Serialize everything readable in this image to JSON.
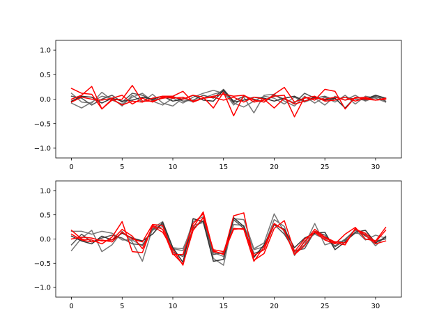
{
  "chart_data": [
    {
      "type": "line",
      "title": "",
      "xlabel": "",
      "ylabel": "",
      "xlim": [
        -1.55,
        32.55
      ],
      "ylim": [
        -1.2,
        1.2
      ],
      "xticks": [
        0,
        5,
        10,
        15,
        20,
        25,
        30
      ],
      "yticks": [
        -1.0,
        -0.5,
        0.0,
        0.5,
        1.0
      ],
      "xtick_labels": [
        "0",
        "5",
        "10",
        "15",
        "20",
        "25",
        "30"
      ],
      "ytick_labels": [
        "−1.0",
        "−0.5",
        "0.0",
        "0.5",
        "1.0"
      ],
      "grid": false,
      "x": [
        0,
        1,
        2,
        3,
        4,
        5,
        6,
        7,
        8,
        9,
        10,
        11,
        12,
        13,
        14,
        15,
        16,
        17,
        18,
        19,
        20,
        21,
        22,
        23,
        24,
        25,
        26,
        27,
        28,
        29,
        30,
        31
      ],
      "series": [
        {
          "color": "#777777",
          "values": [
            0.12,
            -0.06,
            -0.08,
            0.14,
            -0.02,
            -0.1,
            0.04,
            0.12,
            -0.04,
            -0.12,
            0.02,
            -0.08,
            0.04,
            0.12,
            0.18,
            0.12,
            -0.08,
            -0.16,
            -0.04,
            0.06,
            0.02,
            -0.1,
            0.04,
            -0.06,
            0.02,
            -0.12,
            0.06,
            -0.02,
            0.08,
            -0.04,
            0.04,
            0.02
          ]
        },
        {
          "color": "#777777",
          "values": [
            -0.08,
            -0.18,
            -0.06,
            0.06,
            0.02,
            -0.14,
            0.08,
            -0.06,
            0.1,
            -0.08,
            -0.14,
            0.02,
            -0.06,
            0.02,
            0.1,
            0.16,
            -0.12,
            0.04,
            -0.28,
            0.08,
            0.1,
            -0.04,
            -0.14,
            0.06,
            -0.08,
            0.04,
            -0.06,
            0.08,
            -0.1,
            0.06,
            0.02,
            -0.06
          ]
        },
        {
          "color": "#555555",
          "values": [
            0.06,
            0.02,
            -0.12,
            0.0,
            0.08,
            -0.06,
            0.12,
            0.08,
            -0.02,
            0.02,
            0.06,
            -0.04,
            -0.02,
            0.08,
            0.02,
            0.2,
            -0.04,
            0.06,
            0.0,
            -0.06,
            0.08,
            0.0,
            -0.08,
            0.12,
            0.02,
            0.06,
            -0.02,
            0.04,
            0.0,
            -0.02,
            0.06,
            -0.04
          ]
        },
        {
          "color": "#333333",
          "values": [
            -0.04,
            0.06,
            0.04,
            -0.08,
            0.02,
            -0.04,
            -0.02,
            0.04,
            0.0,
            0.06,
            -0.04,
            0.0,
            0.08,
            -0.02,
            -0.04,
            0.18,
            -0.06,
            -0.02,
            0.04,
            0.02,
            -0.04,
            0.02,
            0.06,
            -0.04,
            0.04,
            -0.02,
            0.02,
            -0.18,
            0.04,
            0.0,
            0.08,
            0.02
          ]
        },
        {
          "color": "#ff0000",
          "values": [
            0.22,
            0.12,
            0.1,
            -0.2,
            -0.02,
            0.0,
            0.28,
            -0.04,
            -0.04,
            0.02,
            0.04,
            0.0,
            0.08,
            0.04,
            -0.18,
            0.14,
            -0.34,
            0.08,
            -0.06,
            -0.02,
            0.06,
            0.08,
            -0.36,
            0.04,
            -0.02,
            0.2,
            0.16,
            -0.2,
            0.04,
            0.0,
            -0.02,
            0.0
          ]
        },
        {
          "color": "#ff0000",
          "values": [
            0.0,
            0.08,
            0.26,
            -0.2,
            0.0,
            -0.12,
            -0.04,
            -0.06,
            0.02,
            0.06,
            0.06,
            0.16,
            -0.06,
            0.02,
            0.06,
            0.1,
            0.06,
            0.08,
            -0.02,
            -0.06,
            0.1,
            0.24,
            -0.06,
            0.02,
            0.06,
            -0.04,
            -0.02,
            0.04,
            -0.04,
            0.02,
            -0.02,
            0.0
          ]
        },
        {
          "color": "#ff0000",
          "values": [
            -0.06,
            0.04,
            0.0,
            -0.02,
            0.02,
            0.08,
            -0.1,
            0.02,
            -0.06,
            0.04,
            0.02,
            0.04,
            -0.04,
            0.02,
            0.04,
            -0.02,
            0.04,
            -0.06,
            0.04,
            0.0,
            -0.18,
            0.02,
            -0.1,
            -0.04,
            0.02,
            0.0,
            0.04,
            -0.02,
            0.02,
            0.04,
            -0.02,
            0.02
          ]
        }
      ]
    },
    {
      "type": "line",
      "title": "",
      "xlabel": "",
      "ylabel": "",
      "xlim": [
        -1.55,
        32.55
      ],
      "ylim": [
        -1.2,
        1.2
      ],
      "xticks": [
        0,
        5,
        10,
        15,
        20,
        25,
        30
      ],
      "yticks": [
        -1.0,
        -0.5,
        0.0,
        0.5,
        1.0
      ],
      "xtick_labels": [
        "0",
        "5",
        "10",
        "15",
        "20",
        "25",
        "30"
      ],
      "ytick_labels": [
        "−1.0",
        "−0.5",
        "0.0",
        "0.5",
        "1.0"
      ],
      "grid": false,
      "x": [
        0,
        1,
        2,
        3,
        4,
        5,
        6,
        7,
        8,
        9,
        10,
        11,
        12,
        13,
        14,
        15,
        16,
        17,
        18,
        19,
        20,
        21,
        22,
        23,
        24,
        25,
        26,
        27,
        28,
        29,
        30,
        31
      ],
      "series": [
        {
          "color": "#777777",
          "values": [
            -0.24,
            0.02,
            0.18,
            -0.26,
            -0.12,
            0.16,
            -0.06,
            -0.46,
            0.22,
            0.36,
            -0.18,
            -0.2,
            0.28,
            0.34,
            -0.4,
            -0.54,
            0.42,
            0.4,
            -0.2,
            -0.08,
            0.52,
            0.14,
            -0.28,
            -0.12,
            0.32,
            -0.12,
            -0.06,
            -0.04,
            0.12,
            0.1,
            -0.14,
            0.06
          ]
        },
        {
          "color": "#777777",
          "values": [
            0.16,
            0.16,
            0.1,
            0.16,
            0.12,
            -0.02,
            -0.02,
            -0.14,
            0.18,
            0.26,
            -0.2,
            -0.24,
            0.36,
            0.46,
            -0.28,
            -0.36,
            0.3,
            0.28,
            -0.22,
            -0.16,
            0.4,
            0.26,
            -0.34,
            -0.04,
            0.1,
            0.0,
            -0.14,
            0.0,
            0.18,
            -0.02,
            0.08,
            0.02
          ]
        },
        {
          "color": "#555555",
          "values": [
            -0.12,
            0.1,
            -0.06,
            0.02,
            0.08,
            0.02,
            -0.1,
            -0.12,
            0.2,
            0.3,
            -0.28,
            -0.36,
            0.22,
            0.38,
            -0.32,
            -0.28,
            0.4,
            0.22,
            -0.3,
            -0.22,
            0.3,
            0.1,
            -0.24,
            -0.2,
            0.16,
            0.08,
            -0.16,
            -0.02,
            0.2,
            0.06,
            -0.04,
            0.0
          ]
        },
        {
          "color": "#333333",
          "values": [
            0.06,
            -0.04,
            -0.1,
            0.06,
            -0.02,
            0.12,
            0.02,
            -0.04,
            0.1,
            0.34,
            -0.18,
            -0.48,
            0.42,
            0.36,
            -0.46,
            -0.42,
            0.44,
            0.26,
            -0.38,
            -0.12,
            0.3,
            0.2,
            -0.18,
            0.02,
            0.12,
            0.14,
            -0.22,
            -0.06,
            0.14,
            0.18,
            -0.08,
            0.04
          ]
        },
        {
          "color": "#ff0000",
          "values": [
            0.18,
            0.0,
            -0.02,
            -0.1,
            0.04,
            0.36,
            -0.26,
            -0.28,
            0.28,
            0.2,
            -0.32,
            -0.32,
            0.32,
            0.52,
            -0.24,
            -0.32,
            0.48,
            0.54,
            -0.44,
            -0.3,
            0.22,
            0.38,
            -0.26,
            0.0,
            0.14,
            -0.02,
            -0.1,
            0.1,
            0.24,
            0.0,
            -0.04,
            0.24
          ]
        },
        {
          "color": "#ff0000",
          "values": [
            0.0,
            0.04,
            0.02,
            -0.04,
            -0.02,
            0.2,
            0.06,
            -0.2,
            0.26,
            0.14,
            -0.22,
            -0.54,
            0.24,
            0.56,
            -0.26,
            -0.3,
            0.2,
            0.22,
            -0.34,
            -0.22,
            0.32,
            0.18,
            -0.32,
            -0.06,
            0.2,
            0.04,
            -0.06,
            -0.08,
            0.2,
            0.12,
            -0.06,
            0.18
          ]
        },
        {
          "color": "#ff0000",
          "values": [
            0.1,
            -0.02,
            -0.06,
            -0.02,
            -0.06,
            0.14,
            0.0,
            -0.06,
            0.3,
            0.28,
            -0.3,
            -0.52,
            0.18,
            0.44,
            -0.22,
            -0.26,
            0.22,
            0.2,
            -0.46,
            -0.16,
            0.32,
            0.18,
            -0.32,
            -0.14,
            0.16,
            0.02,
            -0.08,
            -0.12,
            0.22,
            0.08,
            -0.1,
            -0.04
          ]
        }
      ]
    }
  ]
}
